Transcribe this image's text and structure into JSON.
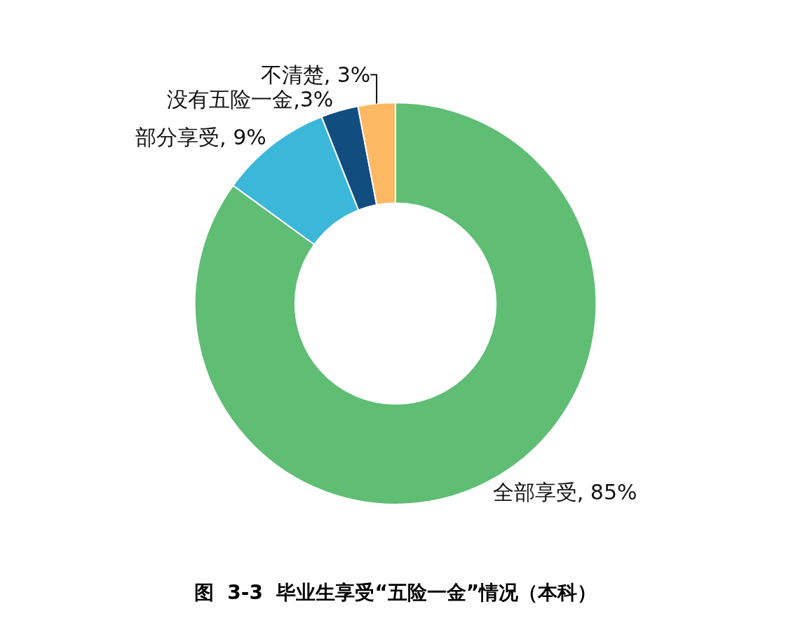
{
  "chart_data": {
    "type": "donut",
    "title": "图  3-3  毕业生享受“五险一金”情况（本科）",
    "categories": [
      "全部享受",
      "部分享受",
      "没有五险一金",
      "不清楚"
    ],
    "values": [
      85,
      9,
      3,
      3
    ],
    "colors": [
      "#5fbd74",
      "#3bb7d9",
      "#124d80",
      "#fdb863"
    ],
    "value_labels": [
      ", 85%",
      ", 9%",
      ",3%",
      ", 3%"
    ],
    "legend": false
  }
}
